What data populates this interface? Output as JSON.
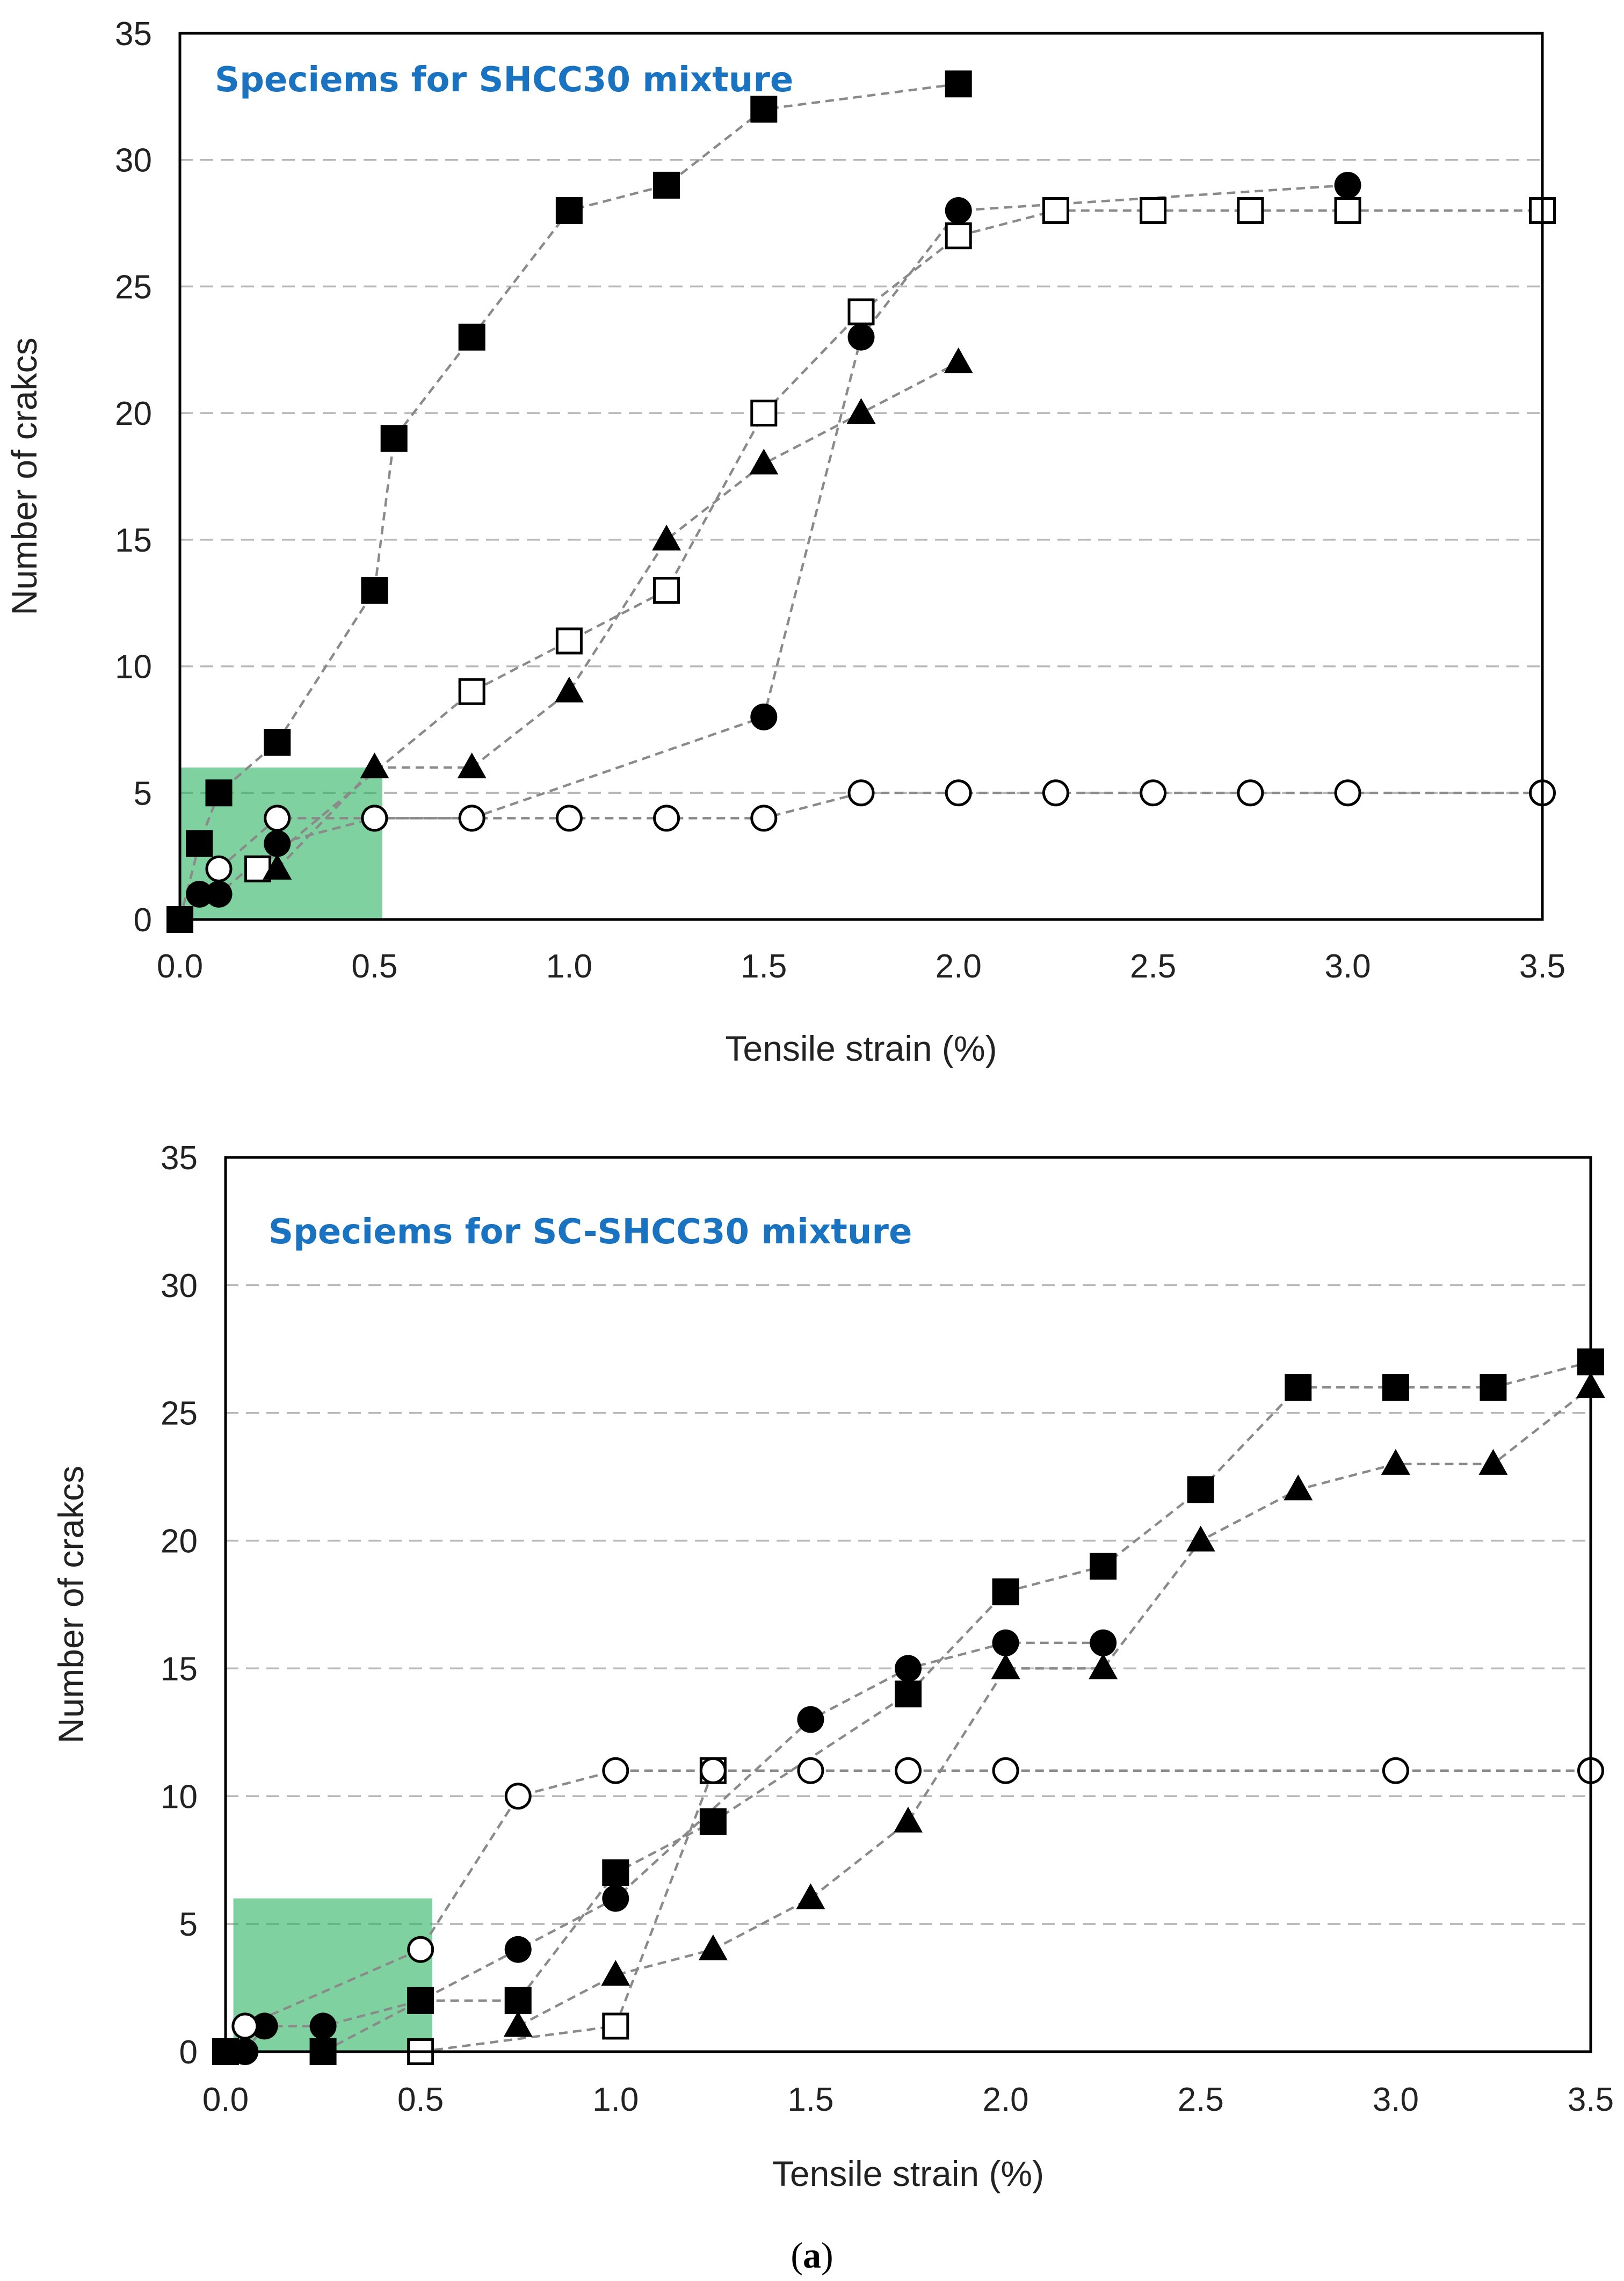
{
  "caption": {
    "open": "(",
    "letter": "a",
    "close": ")"
  },
  "colors": {
    "grid": "#b8b8b8",
    "line": "#8a8a8a",
    "highlight": "#2bb361",
    "title": "#1a73c1",
    "marker": "#000000"
  },
  "chart_data": [
    {
      "type": "scatter",
      "title": "Speciems for SHCC30 mixture",
      "xlabel": "Tensile strain (%)",
      "ylabel": "Number of crakcs",
      "xlim": [
        0,
        3.5
      ],
      "ylim": [
        0,
        35
      ],
      "xticks": [
        "0.0",
        "0.5",
        "1.0",
        "1.5",
        "2.0",
        "2.5",
        "3.0",
        "3.5"
      ],
      "yticks": [
        "0",
        "5",
        "10",
        "15",
        "20",
        "25",
        "30",
        "35"
      ],
      "grid": "horizontal-dashed",
      "highlight_region": {
        "x": [
          0,
          0.52
        ],
        "y": [
          0,
          6
        ]
      },
      "series": [
        {
          "name": "filled-square",
          "marker": "filled-square",
          "x": [
            0,
            0.05,
            0.1,
            0.25,
            0.5,
            0.55,
            0.75,
            1.0,
            1.25,
            1.5,
            2.0
          ],
          "y": [
            0,
            3,
            5,
            7,
            13,
            19,
            23,
            28,
            29,
            32,
            33
          ]
        },
        {
          "name": "open-square",
          "marker": "open-square",
          "x": [
            0.2,
            0.75,
            1.0,
            1.25,
            1.5,
            1.75,
            2.0,
            2.25,
            2.5,
            2.75,
            3.0,
            3.5
          ],
          "y": [
            2,
            9,
            11,
            13,
            20,
            24,
            27,
            28,
            28,
            28,
            28,
            28
          ]
        },
        {
          "name": "filled-triangle",
          "marker": "filled-triangle",
          "x": [
            0.25,
            0.5,
            0.75,
            1.0,
            1.25,
            1.5,
            1.75,
            2.0
          ],
          "y": [
            2,
            6,
            6,
            9,
            15,
            18,
            20,
            22
          ]
        },
        {
          "name": "filled-circle",
          "marker": "filled-circle",
          "x": [
            0.05,
            0.1,
            0.25,
            0.5,
            0.75,
            1.5,
            1.75,
            2.0,
            3.0
          ],
          "y": [
            1,
            1,
            3,
            4,
            4,
            8,
            23,
            28,
            29
          ]
        },
        {
          "name": "open-circle",
          "marker": "open-circle",
          "x": [
            0.1,
            0.25,
            0.5,
            0.75,
            1.0,
            1.25,
            1.5,
            1.75,
            2.0,
            2.25,
            2.5,
            2.75,
            3.0,
            3.5
          ],
          "y": [
            2,
            4,
            4,
            4,
            4,
            4,
            4,
            5,
            5,
            5,
            5,
            5,
            5,
            5
          ]
        }
      ]
    },
    {
      "type": "scatter",
      "title": "Speciems for SC-SHCC30 mixture",
      "xlabel": "Tensile strain (%)",
      "ylabel": "Number of crakcs",
      "xlim": [
        0,
        3.5
      ],
      "ylim": [
        0,
        35
      ],
      "xticks": [
        "0.0",
        "0.5",
        "1.0",
        "1.5",
        "2.0",
        "2.5",
        "3.0",
        "3.5"
      ],
      "yticks": [
        "0",
        "5",
        "10",
        "15",
        "20",
        "25",
        "30",
        "35"
      ],
      "grid": "horizontal-dashed",
      "highlight_region": {
        "x": [
          0.02,
          0.53
        ],
        "y": [
          0,
          6
        ]
      },
      "series": [
        {
          "name": "filled-square",
          "marker": "filled-square",
          "x": [
            0,
            0.25,
            0.5,
            0.75,
            1.0,
            1.25,
            1.75,
            2.0,
            2.25,
            2.5,
            2.75,
            3.0,
            3.25,
            3.5
          ],
          "y": [
            0,
            0,
            2,
            2,
            7,
            9,
            14,
            18,
            19,
            22,
            26,
            26,
            26,
            27
          ]
        },
        {
          "name": "open-square",
          "marker": "open-square",
          "x": [
            0.5,
            1.0,
            1.25
          ],
          "y": [
            0,
            1,
            11
          ]
        },
        {
          "name": "filled-triangle",
          "marker": "filled-triangle",
          "x": [
            0.75,
            1.0,
            1.25,
            1.5,
            1.75,
            2.0,
            2.25,
            2.5,
            2.75,
            3.0,
            3.25,
            3.5
          ],
          "y": [
            1,
            3,
            4,
            6,
            9,
            15,
            15,
            20,
            22,
            23,
            23,
            26
          ]
        },
        {
          "name": "filled-circle",
          "marker": "filled-circle",
          "x": [
            0.05,
            0.1,
            0.25,
            0.5,
            0.75,
            1.0,
            1.5,
            1.75,
            2.0,
            2.25
          ],
          "y": [
            0,
            1,
            1,
            2,
            4,
            6,
            13,
            15,
            16,
            16
          ]
        },
        {
          "name": "open-circle",
          "marker": "open-circle",
          "x": [
            0.05,
            0.5,
            0.75,
            1.0,
            1.25,
            1.5,
            1.75,
            2.0,
            3.0,
            3.5
          ],
          "y": [
            1,
            4,
            10,
            11,
            11,
            11,
            11,
            11,
            11,
            11
          ]
        }
      ]
    }
  ]
}
